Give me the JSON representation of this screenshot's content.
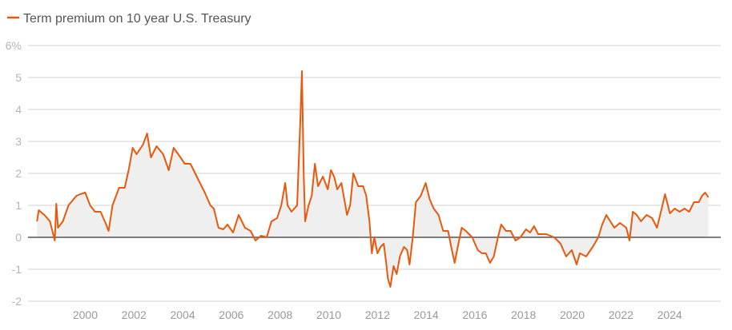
{
  "chart_data": {
    "type": "line",
    "title": "",
    "legend": [
      {
        "label": "Term premium on 10 year U.S. Treasury",
        "color": "#e8590c"
      }
    ],
    "legend_placement": "top-left",
    "xlabel": "",
    "ylabel": "",
    "xlim": [
      1997.65,
      2026.1
    ],
    "ylim": [
      -2,
      6
    ],
    "grid": true,
    "y_ticks": [
      {
        "value": 6,
        "label": "6%"
      },
      {
        "value": 5,
        "label": "5"
      },
      {
        "value": 4,
        "label": "4"
      },
      {
        "value": 3,
        "label": "3"
      },
      {
        "value": 2,
        "label": "2"
      },
      {
        "value": 1,
        "label": "1"
      },
      {
        "value": 0,
        "label": "0"
      },
      {
        "value": -1,
        "label": "-1"
      },
      {
        "value": -2,
        "label": "-2"
      }
    ],
    "x_ticks": [
      {
        "value": 2000,
        "label": "2000"
      },
      {
        "value": 2002,
        "label": "2002"
      },
      {
        "value": 2004,
        "label": "2004"
      },
      {
        "value": 2006,
        "label": "2006"
      },
      {
        "value": 2008,
        "label": "2008"
      },
      {
        "value": 2010,
        "label": "2010"
      },
      {
        "value": 2012,
        "label": "2012"
      },
      {
        "value": 2014,
        "label": "2014"
      },
      {
        "value": 2016,
        "label": "2016"
      },
      {
        "value": 2018,
        "label": "2018"
      },
      {
        "value": 2020,
        "label": "2020"
      },
      {
        "value": 2022,
        "label": "2022"
      },
      {
        "value": 2024,
        "label": "2024"
      }
    ],
    "series": [
      {
        "name": "Term premium on 10 year U.S. Treasury",
        "color": "#e8590c",
        "x": [
          1998.02,
          1998.09,
          1998.32,
          1998.55,
          1998.75,
          1998.81,
          1998.88,
          1999.08,
          1999.31,
          1999.64,
          1999.8,
          2000.0,
          2000.2,
          2000.4,
          2000.63,
          2000.86,
          2000.96,
          2001.12,
          2001.39,
          2001.62,
          2001.78,
          2001.95,
          2002.11,
          2002.37,
          2002.54,
          2002.7,
          2002.93,
          2003.2,
          2003.43,
          2003.63,
          2003.82,
          2004.09,
          2004.32,
          2004.58,
          2004.91,
          2005.14,
          2005.28,
          2005.47,
          2005.67,
          2005.84,
          2006.07,
          2006.3,
          2006.56,
          2006.79,
          2006.99,
          2007.22,
          2007.45,
          2007.65,
          2007.88,
          2008.05,
          2008.21,
          2008.31,
          2008.47,
          2008.7,
          2008.84,
          2008.9,
          2008.97,
          2009.03,
          2009.17,
          2009.3,
          2009.43,
          2009.56,
          2009.76,
          2009.96,
          2010.09,
          2010.22,
          2010.35,
          2010.52,
          2010.75,
          2010.88,
          2011.01,
          2011.21,
          2011.41,
          2011.54,
          2011.67,
          2011.77,
          2011.87,
          2012.0,
          2012.13,
          2012.26,
          2012.36,
          2012.43,
          2012.53,
          2012.66,
          2012.79,
          2012.92,
          2013.09,
          2013.22,
          2013.32,
          2013.45,
          2013.58,
          2013.78,
          2013.98,
          2014.14,
          2014.31,
          2014.51,
          2014.7,
          2014.9,
          2015.03,
          2015.17,
          2015.3,
          2015.46,
          2015.63,
          2015.89,
          2016.12,
          2016.29,
          2016.45,
          2016.62,
          2016.78,
          2016.95,
          2017.08,
          2017.28,
          2017.47,
          2017.67,
          2017.87,
          2018.1,
          2018.27,
          2018.43,
          2018.6,
          2018.93,
          2019.26,
          2019.52,
          2019.75,
          2019.98,
          2020.18,
          2020.31,
          2020.57,
          2020.84,
          2021.07,
          2021.23,
          2021.4,
          2021.56,
          2021.73,
          2021.96,
          2022.22,
          2022.35,
          2022.49,
          2022.65,
          2022.82,
          2023.05,
          2023.28,
          2023.48,
          2023.61,
          2023.81,
          2024.01,
          2024.21,
          2024.41,
          2024.61,
          2024.8,
          2025.0,
          2025.2,
          2025.33,
          2025.46,
          2025.59
        ],
        "y": [
          0.5,
          0.85,
          0.7,
          0.5,
          -0.1,
          1.05,
          0.3,
          0.5,
          1.0,
          1.3,
          1.35,
          1.4,
          1.0,
          0.8,
          0.8,
          0.4,
          0.2,
          1.0,
          1.55,
          1.55,
          2.1,
          2.8,
          2.6,
          2.9,
          3.25,
          2.5,
          2.85,
          2.6,
          2.1,
          2.8,
          2.6,
          2.3,
          2.3,
          1.9,
          1.4,
          1.0,
          0.9,
          0.3,
          0.25,
          0.4,
          0.15,
          0.7,
          0.3,
          0.2,
          -0.1,
          0.05,
          0.0,
          0.5,
          0.6,
          1.0,
          1.7,
          1.0,
          0.8,
          1.0,
          3.8,
          5.2,
          2.0,
          0.5,
          1.0,
          1.3,
          2.3,
          1.6,
          1.9,
          1.5,
          2.1,
          1.9,
          1.5,
          1.7,
          0.7,
          1.0,
          2.0,
          1.6,
          1.6,
          1.3,
          0.5,
          -0.5,
          0.0,
          -0.5,
          -0.3,
          -0.2,
          -0.8,
          -1.3,
          -1.55,
          -0.9,
          -1.15,
          -0.6,
          -0.3,
          -0.4,
          -0.85,
          0.0,
          1.1,
          1.3,
          1.7,
          1.2,
          0.9,
          0.7,
          0.2,
          0.2,
          -0.3,
          -0.8,
          -0.3,
          0.3,
          0.2,
          0.0,
          -0.4,
          -0.5,
          -0.5,
          -0.8,
          -0.6,
          0.0,
          0.4,
          0.2,
          0.2,
          -0.1,
          0.0,
          0.25,
          0.15,
          0.35,
          0.1,
          0.1,
          0.0,
          -0.2,
          -0.6,
          -0.4,
          -0.85,
          -0.5,
          -0.6,
          -0.3,
          0.0,
          0.4,
          0.7,
          0.5,
          0.3,
          0.45,
          0.3,
          -0.1,
          0.8,
          0.7,
          0.5,
          0.7,
          0.6,
          0.3,
          0.7,
          1.35,
          0.75,
          0.9,
          0.8,
          0.9,
          0.8,
          1.1,
          1.1,
          1.3,
          1.4,
          1.25
        ]
      }
    ]
  }
}
